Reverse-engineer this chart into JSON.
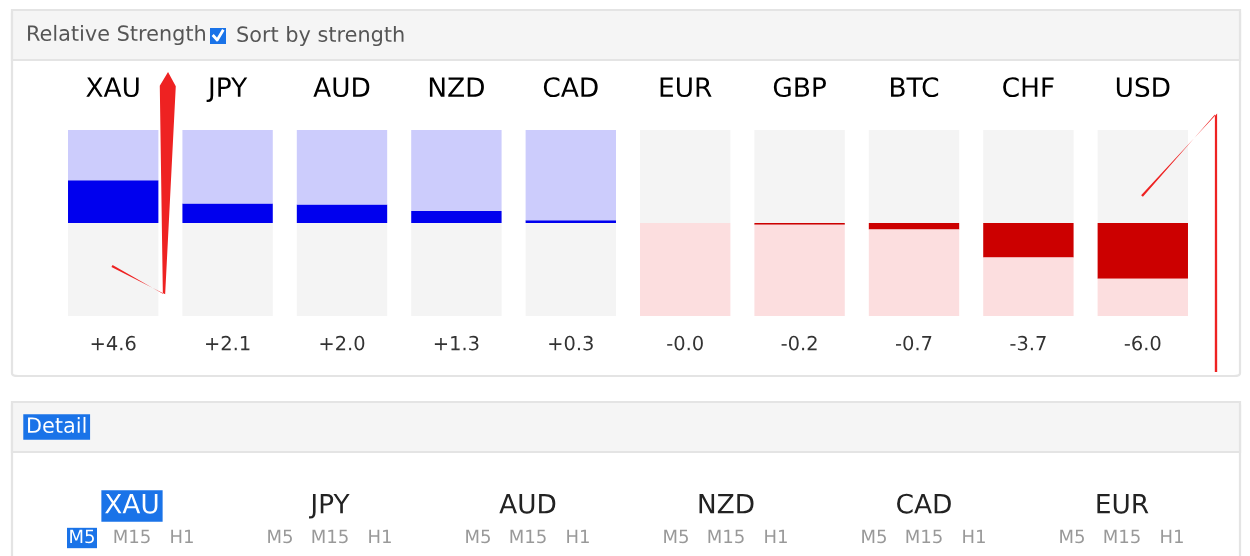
{
  "chart_data": [
    {
      "type": "bar",
      "title": "Relative Strength",
      "annotations": [
        "Sort by strength"
      ],
      "categories": [
        "XAU",
        "JPY",
        "AUD",
        "NZD",
        "CAD",
        "EUR",
        "GBP",
        "BTC",
        "CHF",
        "USD"
      ],
      "series": [
        {
          "values": [
            4.6,
            2.1,
            2.0,
            1.3,
            0.3,
            0.0,
            -0.2,
            -0.7,
            -3.7,
            -6.0
          ],
          "value_labels": [
            "+4.6",
            "+2.1",
            "+2.0",
            "+1.3",
            "+0.3",
            "-0.0",
            "-0.2",
            "-0.7",
            "-3.7",
            "-6.0"
          ],
          "colors": [
            "#0000ee",
            "#0000ee",
            "#0000ee",
            "#0000ee",
            "#0000ee",
            "#cc0000",
            "#cc0000",
            "#cc0000",
            "#cc0000",
            "#cc0000"
          ]
        },
        {
          "values": [
            5.4,
            7.9,
            8.0,
            8.7,
            9.7,
            -10.0,
            -9.8,
            -9.3,
            -6.3,
            -4.0
          ],
          "colors": [
            "#ccccfc",
            "#ccccfc",
            "#ccccfc",
            "#ccccfc",
            "#ccccfc",
            "#fcdedf",
            "#fcdedf",
            "#fcdedf",
            "#fcdedf",
            "#fcdedf"
          ]
        },
        {
          "values": [
            -10,
            -10,
            -10,
            -10,
            -10,
            10,
            10,
            10,
            10,
            10
          ],
          "colors": [
            "#f4f4f4",
            "#f4f4f4",
            "#f4f4f4",
            "#f4f4f4",
            "#f4f4f4",
            "#f4f4f4",
            "#f4f4f4",
            "#f4f4f4",
            "#f4f4f4",
            "#f4f4f4"
          ]
        }
      ],
      "stacked": true,
      "ylim": [
        -10,
        10
      ],
      "tick_labels": "x"
    },
    {
      "type": "other",
      "title": "Detail",
      "annotations": [
        "XAU",
        "M5",
        "M15",
        "H1",
        "JPY",
        "M5",
        "M15",
        "H1",
        "AUD",
        "M5",
        "M15",
        "H1",
        "NZD",
        "M5",
        "M15",
        "H1",
        "CAD",
        "M5",
        "M15",
        "H1",
        "EUR",
        "M5",
        "M15",
        "H1"
      ]
    }
  ]
}
